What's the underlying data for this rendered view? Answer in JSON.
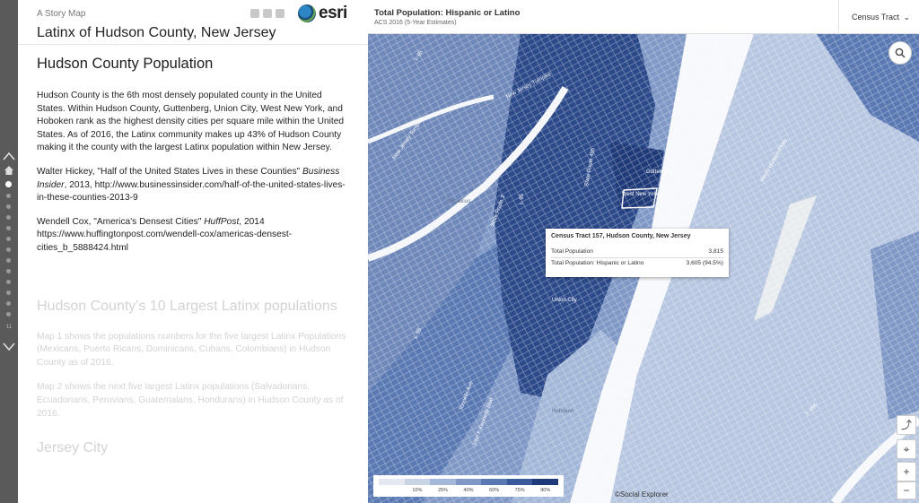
{
  "story": {
    "kicker": "A Story Map",
    "title": "Latinx of Hudson County, New Jersey",
    "logo_text": "esri"
  },
  "nav": {
    "counter": "11"
  },
  "section1": {
    "heading": "Hudson County Population",
    "paragraph1": "Hudson County is the 6th most densely populated county in the United States. Within Hudson County, Guttenberg, Union City, West New York, and Hoboken rank as the highest density cities per square mile within the United States. As of 2016, the Latinx community makes up 43% of Hudson County making it the county with the largest Latinx population within New Jersey.",
    "citation1_pre": "Walter Hickey, \"Half of the United States Lives in these Counties\" ",
    "citation1_pub": "Business Insider",
    "citation1_post": ", 2013, http://www.businessinsider.com/half-of-the-united-states-lives-in-these-counties-2013-9",
    "citation2_pre": "Wendell Cox, \"America's Densest Cities\" ",
    "citation2_pub": "HuffPost",
    "citation2_post": ", 2014 https://www.huffingtonpost.com/wendell-cox/americas-densest-cities_b_5888424.html"
  },
  "section2": {
    "heading": "Hudson County's 10 Largest Latinx populations",
    "paragraph1": "Map 1 shows the populations numbers for the five largest Latinx Populations (Mexicans, Puerto Ricans, Dominicans, Cubans, Colombians) in Hudson County as of 2016.",
    "paragraph2": "Map 2 shows the next five largest Latinx populations (Salvadorians, Ecuadorians, Peruvians, Guatemalans, Hondurans) in Hudson County as of 2016."
  },
  "section3": {
    "heading": "Jersey City"
  },
  "map": {
    "title": "Total Population: Hispanic or Latino",
    "subtitle": "ACS 2016 (5-Year Estimates)",
    "geography": "Census Tract",
    "attribution": "©Social Explorer",
    "popup": {
      "title": "Census Tract 157, Hudson County, New Jersey",
      "rows": [
        {
          "label": "Total Population",
          "value": "3,815"
        },
        {
          "label": "Total Population: Hispanic or Latino",
          "value": "3,605 (94.5%)"
        }
      ]
    },
    "legend": {
      "ticks": [
        "10%",
        "25%",
        "40%",
        "60%",
        "75%",
        "90%"
      ],
      "colors": [
        "#e4e9f2",
        "#c8d3e6",
        "#a3b7d8",
        "#7f98c6",
        "#5a79b3",
        "#3a5a9c",
        "#1f3a78"
      ]
    },
    "labels": {
      "guttenberg": "Guttenberg",
      "west_new_york": "West New York",
      "union_city": "Union City",
      "hoboken": "Hoboken",
      "secaucus": "Secaucus",
      "nj_turnpike": "New Jersey Turnpike",
      "i95": "I- 95",
      "i495": "I- 495",
      "route3": "State Route 3",
      "route495": "State Route 495",
      "henry_hudson": "Henry Hudson Pkwy",
      "tonnelle": "Tonnelle Ave",
      "kennedy": "John F Kennedy Blvd"
    }
  }
}
